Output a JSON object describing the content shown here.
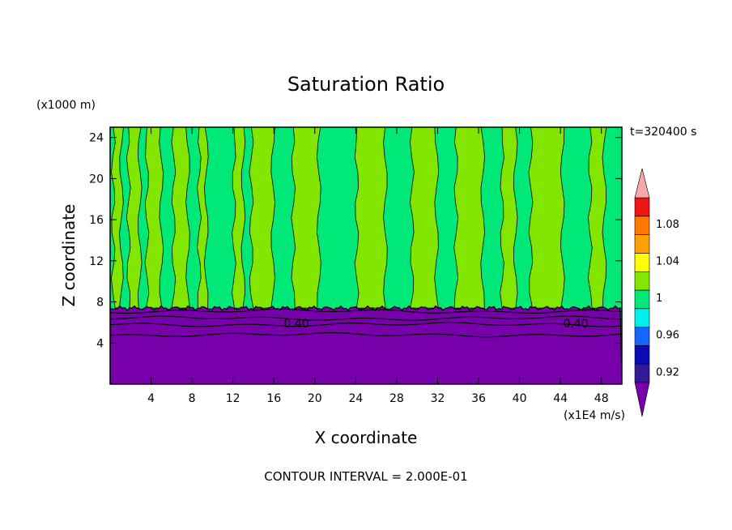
{
  "chart_data": {
    "type": "heatmap",
    "title": "Saturation Ratio",
    "xlabel": "X coordinate",
    "ylabel": "Z coordinate",
    "x_units": "(x1E4 m/s)",
    "y_units": "(x1000 m)",
    "time_label": "t=320400 s",
    "footer": "CONTOUR INTERVAL = 2.000E-01",
    "xlim": [
      0,
      50
    ],
    "ylim": [
      0,
      25
    ],
    "x_ticks": [
      4,
      8,
      12,
      16,
      20,
      24,
      28,
      32,
      36,
      40,
      44,
      48
    ],
    "x_tick_labels": [
      "4",
      "8",
      "12",
      "16",
      "20",
      "24",
      "28",
      "32",
      "36",
      "40",
      "44",
      "48"
    ],
    "y_ticks": [
      4,
      8,
      12,
      16,
      20,
      24
    ],
    "y_tick_labels": [
      "4",
      "8",
      "12",
      "16",
      "20",
      "24"
    ],
    "contour_labels": [
      {
        "text": "0.40",
        "x": 18.2,
        "y": 5.9
      },
      {
        "text": "0.40",
        "x": 45.5,
        "y": 5.9
      }
    ],
    "low_layer_top": 7.4,
    "low_contour_levels_z": [
      7.1,
      6.4,
      5.8,
      4.8
    ],
    "high_bands": [
      [
        0.3,
        1.1
      ],
      [
        1.8,
        2.9
      ],
      [
        3.6,
        5.0
      ],
      [
        6.2,
        7.6
      ],
      [
        8.7,
        9.4
      ],
      [
        12.1,
        13.0
      ],
      [
        13.8,
        15.9
      ],
      [
        17.9,
        20.4
      ],
      [
        24.1,
        26.9
      ],
      [
        29.5,
        31.9
      ],
      [
        33.8,
        36.4
      ],
      [
        38.3,
        39.6
      ],
      [
        41.1,
        44.2
      ],
      [
        46.9,
        48.3
      ]
    ],
    "colorbar": {
      "levels": [
        0.92,
        0.94,
        0.96,
        0.98,
        1.0,
        1.02,
        1.04,
        1.06,
        1.08,
        1.1
      ],
      "colors": [
        "#341996",
        "#0a0ab8",
        "#1466ff",
        "#00f0f0",
        "#00e878",
        "#82e600",
        "#ffff00",
        "#ffa000",
        "#ff7800",
        "#f01414"
      ],
      "under_color": "#7800aa",
      "over_color": "#f4aaaa",
      "tick_labels": [
        "0.92",
        "0.96",
        "1",
        "1.04",
        "1.08"
      ],
      "tick_values": [
        0.92,
        0.96,
        1.0,
        1.04,
        1.08
      ]
    },
    "field_colors": {
      "low": "#7800aa",
      "mid": "#00e878",
      "high": "#82e600"
    }
  }
}
